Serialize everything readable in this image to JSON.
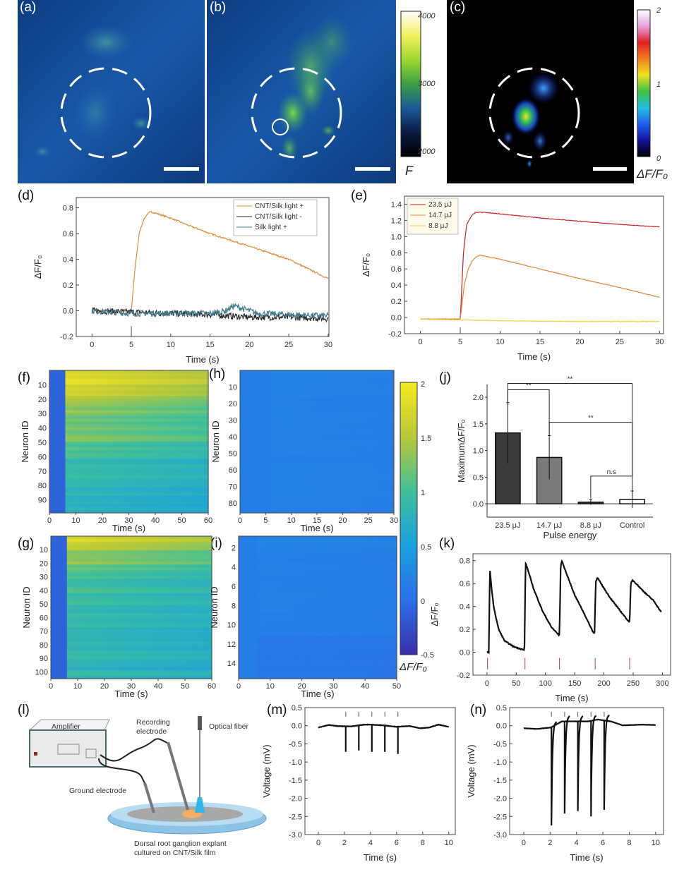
{
  "panel_labels": {
    "a": "(a)",
    "b": "(b)",
    "c": "(c)",
    "d": "(d)",
    "e": "(e)",
    "f": "(f)",
    "g": "(g)",
    "h": "(h)",
    "i": "(i)",
    "j": "(j)",
    "k": "(k)",
    "l": "(l)",
    "m": "(m)",
    "n": "(n)"
  },
  "images": {
    "colorbar_F": {
      "ticks": [
        "4000",
        "3000",
        "2000"
      ],
      "label": "F",
      "colors": [
        "#ffffff",
        "#f4f060",
        "#9ad830",
        "#3aa040",
        "#1a5a9a",
        "#0a1a40",
        "#000000"
      ]
    },
    "colorbar_dff": {
      "ticks": [
        "2",
        "1",
        "0"
      ],
      "label": "ΔF/F₀",
      "colors": [
        "#ffffff",
        "#e8a0e0",
        "#e02020",
        "#f08020",
        "#f0e020",
        "#40c040",
        "#20c0e0",
        "#2060f0",
        "#1010a0",
        "#000000"
      ]
    }
  },
  "heatmap_colorbar": {
    "ticks": [
      "2",
      "1.5",
      "1",
      "0.5",
      "0",
      "-0.5"
    ],
    "label": "ΔF/F₀",
    "range": [
      -0.5,
      2
    ],
    "colors": [
      "#f8e820",
      "#b8c838",
      "#40c098",
      "#1aa0e0",
      "#2a70e8",
      "#3a2ea8"
    ]
  },
  "chart_data": [
    {
      "id": "d",
      "type": "line",
      "xlabel": "Time (s)",
      "ylabel": "ΔF/F₀",
      "xlim": [
        -2,
        30.1
      ],
      "ylim": [
        -0.2,
        0.88
      ],
      "xticks": [
        0,
        5,
        10,
        15,
        20,
        25,
        30
      ],
      "yticks": [
        -0.2,
        0.0,
        0.2,
        0.4,
        0.6,
        0.8
      ],
      "stimulus_times_s": [
        5
      ],
      "legend": "top-right",
      "series": [
        {
          "name": "CNT/Silk light +",
          "color": "#e0903a",
          "x": [
            0,
            5,
            5.5,
            6,
            6.5,
            7,
            7.5,
            8,
            10,
            12,
            15,
            20,
            25,
            30
          ],
          "y": [
            0,
            0,
            0.35,
            0.6,
            0.7,
            0.75,
            0.77,
            0.76,
            0.72,
            0.67,
            0.6,
            0.5,
            0.4,
            0.25
          ]
        },
        {
          "name": "CNT/Silk light -",
          "color": "#2a2a2a",
          "x": [
            0,
            5,
            10,
            15,
            20,
            25,
            30
          ],
          "y": [
            0,
            -0.01,
            -0.02,
            -0.03,
            -0.05,
            -0.05,
            -0.06
          ]
        },
        {
          "name": "Silk light +",
          "color": "#3f7a90",
          "x": [
            0,
            5,
            10,
            15,
            17,
            18,
            19,
            21,
            25,
            30
          ],
          "y": [
            0,
            -0.02,
            -0.02,
            -0.02,
            0.0,
            0.04,
            0.02,
            -0.02,
            -0.03,
            -0.04
          ]
        }
      ]
    },
    {
      "id": "e",
      "type": "line",
      "xlabel": "Time (s)",
      "ylabel": "ΔF/F₀",
      "xlim": [
        -2,
        30.5
      ],
      "ylim": [
        -0.2,
        1.5
      ],
      "xticks": [
        0,
        5,
        10,
        15,
        20,
        25,
        30
      ],
      "yticks": [
        -0.2,
        0.0,
        0.2,
        0.4,
        0.6,
        0.8,
        1.0,
        1.2,
        1.4
      ],
      "stimulus_times_s": [
        5
      ],
      "legend": "top-left",
      "series": [
        {
          "name": "23.5 μJ",
          "color": "#c8202a",
          "x": [
            0,
            5,
            5.4,
            5.8,
            6.5,
            7,
            8,
            10,
            15,
            20,
            25,
            30
          ],
          "y": [
            -0.02,
            -0.02,
            0.8,
            1.15,
            1.27,
            1.3,
            1.3,
            1.28,
            1.23,
            1.19,
            1.15,
            1.12
          ]
        },
        {
          "name": "14.7 μJ",
          "color": "#e08a3a",
          "x": [
            0,
            5,
            5.5,
            6,
            6.5,
            7,
            7.5,
            8,
            10,
            15,
            20,
            25,
            30
          ],
          "y": [
            -0.02,
            -0.02,
            0.4,
            0.6,
            0.7,
            0.75,
            0.77,
            0.76,
            0.72,
            0.6,
            0.48,
            0.37,
            0.25
          ]
        },
        {
          "name": "8.8 μJ",
          "color": "#f0d040",
          "x": [
            0,
            5,
            10,
            20,
            30
          ],
          "y": [
            -0.02,
            -0.03,
            -0.04,
            -0.05,
            -0.05
          ]
        }
      ]
    },
    {
      "id": "f",
      "type": "heatmap",
      "xlabel": "Time (s)",
      "ylabel": "Neuron ID",
      "xlim": [
        0,
        60
      ],
      "ylim": [
        0,
        99
      ],
      "xticks": [
        0,
        10,
        20,
        30,
        40,
        50,
        60
      ],
      "yticks": [
        10,
        20,
        30,
        40,
        50,
        60,
        70,
        80,
        90
      ],
      "stimulus_onset_s": 6,
      "baseline_value": -0.1,
      "row_band_values": [
        1.8,
        1.65,
        1.35,
        1.2,
        1.25,
        1.05,
        0.95,
        0.9,
        0.85,
        0.8
      ]
    },
    {
      "id": "h",
      "type": "heatmap",
      "xlabel": "Time (s)",
      "ylabel": "Neuron ID",
      "xlim": [
        0,
        30
      ],
      "ylim": [
        0,
        86
      ],
      "xticks": [
        0,
        5,
        10,
        15,
        20,
        25,
        30
      ],
      "yticks": [
        10,
        20,
        30,
        40,
        50,
        60,
        70,
        80
      ],
      "stimulus_onset_s": 6,
      "baseline_value": 0.15,
      "row_band_values": [
        0.2,
        0.2,
        0.18,
        0.2,
        0.18,
        0.2,
        0.18,
        0.2,
        0.2,
        0.18
      ]
    },
    {
      "id": "g",
      "type": "heatmap",
      "xlabel": "Time (s)",
      "ylabel": "Neuron ID",
      "xlim": [
        0,
        60
      ],
      "ylim": [
        0,
        105
      ],
      "xticks": [
        0,
        10,
        20,
        30,
        40,
        50,
        60
      ],
      "yticks": [
        10,
        20,
        30,
        40,
        50,
        60,
        70,
        80,
        90,
        100
      ],
      "stimulus_onset_s": 6,
      "baseline_value": -0.1,
      "row_band_values": [
        1.7,
        1.35,
        1.1,
        1.0,
        0.95,
        0.92,
        0.9,
        0.88,
        0.85,
        0.82
      ]
    },
    {
      "id": "i",
      "type": "heatmap",
      "xlabel": "Time (s)",
      "ylabel": "Neuron ID",
      "xlim": [
        0,
        50
      ],
      "ylim": [
        0.8,
        15.6
      ],
      "xticks": [
        0,
        10,
        20,
        30,
        40,
        50
      ],
      "yticks": [
        2,
        4,
        6,
        8,
        10,
        12,
        14
      ],
      "stimulus_onset_s": 6,
      "baseline_value": 0.15,
      "row_band_values": [
        0.22,
        0.18,
        0.18,
        0.17,
        0.17,
        0.17,
        0.16,
        0.1,
        0.08,
        0.08
      ]
    },
    {
      "id": "j",
      "type": "bar",
      "xlabel": "Pulse energy",
      "ylabel": "MaximumΔF/F₀",
      "ylim": [
        -0.25,
        2.24
      ],
      "yticks": [
        0.0,
        0.5,
        1.0,
        1.5,
        2.0
      ],
      "categories": [
        "23.5 μJ",
        "14.7 μJ",
        "8.8 μJ",
        "Control"
      ],
      "values": [
        1.33,
        0.87,
        0.03,
        0.08
      ],
      "errors": [
        0.57,
        0.41,
        0.05,
        0.16
      ],
      "colors": [
        "#3a3a3a",
        "#7a7a7a",
        "#444444",
        "#ffffff"
      ],
      "significance": [
        {
          "pair": [
            0,
            1
          ],
          "label": "**"
        },
        {
          "pair": [
            0,
            3
          ],
          "label": "**"
        },
        {
          "pair": [
            1,
            3
          ],
          "label": "**"
        },
        {
          "pair": [
            2,
            3
          ],
          "label": "n.s"
        }
      ]
    },
    {
      "id": "k",
      "type": "line",
      "xlabel": "Time (s)",
      "ylabel": "ΔF/F₀",
      "xlim": [
        -24,
        314
      ],
      "ylim": [
        -0.2,
        0.86
      ],
      "xticks": [
        0,
        50,
        100,
        150,
        200,
        250,
        300
      ],
      "yticks": [
        -0.2,
        0.0,
        0.2,
        0.4,
        0.6,
        0.8
      ],
      "stimulus_times_s": [
        1,
        65,
        124,
        185,
        244
      ],
      "series": [
        {
          "color": "#111111",
          "x": [
            0,
            3,
            5,
            8,
            12,
            20,
            30,
            45,
            63,
            64,
            66,
            70,
            80,
            95,
            110,
            123,
            124,
            126,
            128,
            135,
            150,
            165,
            182,
            184,
            186,
            189,
            195,
            210,
            225,
            242,
            244,
            246,
            249,
            255,
            270,
            285,
            298
          ],
          "y": [
            0,
            0,
            0.72,
            0.55,
            0.38,
            0.2,
            0.1,
            0.05,
            0.02,
            0.02,
            0.78,
            0.72,
            0.55,
            0.36,
            0.22,
            0.15,
            0.15,
            0.75,
            0.8,
            0.7,
            0.5,
            0.35,
            0.17,
            0.17,
            0.62,
            0.65,
            0.6,
            0.48,
            0.38,
            0.27,
            0.27,
            0.6,
            0.63,
            0.6,
            0.52,
            0.45,
            0.35
          ]
        }
      ]
    },
    {
      "id": "m",
      "type": "line",
      "xlabel": "Time (s)",
      "ylabel": "Voltage (mV)",
      "xlim": [
        -1.03,
        10.5
      ],
      "ylim": [
        -3.0,
        0.5
      ],
      "xticks": [
        0,
        2,
        4,
        6,
        8,
        10
      ],
      "yticks": [
        -3.0,
        -2.5,
        -2.0,
        -1.5,
        -1.0,
        -0.5,
        0.0,
        0.5
      ],
      "stimulus_times_s": [
        2.1,
        3.1,
        4.1,
        5.1,
        6.1
      ],
      "spike_minima_mV": [
        -0.72,
        -0.68,
        -0.72,
        -0.72,
        -0.78
      ],
      "series": [
        {
          "color": "#111111",
          "x": [
            0,
            0.8,
            1.5,
            2.5,
            3.5,
            4,
            5,
            6,
            7,
            7.8,
            8.5,
            9.2,
            10
          ],
          "y": [
            -0.05,
            0.02,
            -0.01,
            -0.02,
            0.03,
            0.03,
            0.01,
            -0.03,
            -0.01,
            -0.07,
            -0.05,
            0.03,
            -0.03
          ]
        }
      ]
    },
    {
      "id": "n",
      "type": "line",
      "xlabel": "Time (s)",
      "ylabel": "Voltage (mV)",
      "xlim": [
        -1.07,
        10.6
      ],
      "ylim": [
        -3.0,
        0.5
      ],
      "xticks": [
        0,
        2,
        4,
        6,
        8,
        10
      ],
      "yticks": [
        -3.0,
        -2.5,
        -2.0,
        -1.5,
        -1.0,
        -0.5,
        0.0,
        0.5
      ],
      "stimulus_times_s": [
        2.1,
        3.1,
        4.1,
        5.1,
        6.1
      ],
      "spike_minima_mV": [
        -2.75,
        -2.42,
        -2.35,
        -2.5,
        -2.32
      ],
      "series": [
        {
          "color": "#111111",
          "x": [
            0,
            1,
            2.05,
            2.9,
            3.9,
            4.9,
            5.6,
            6.6,
            7.5,
            9,
            10
          ],
          "y": [
            -0.07,
            -0.09,
            -0.05,
            0.12,
            0.12,
            0.12,
            0.17,
            0.12,
            0.01,
            0.03,
            0.02
          ]
        }
      ]
    }
  ],
  "diagram": {
    "amplifier": "Amplifier",
    "recording_electrode_1": "Recording",
    "recording_electrode_2": "electrode",
    "optical_fiber": "Optical fiber",
    "ground_electrode": "Ground electrode",
    "caption_1": "Dorsal root ganglion explant",
    "caption_2": "cultured on CNT/Silk film"
  }
}
